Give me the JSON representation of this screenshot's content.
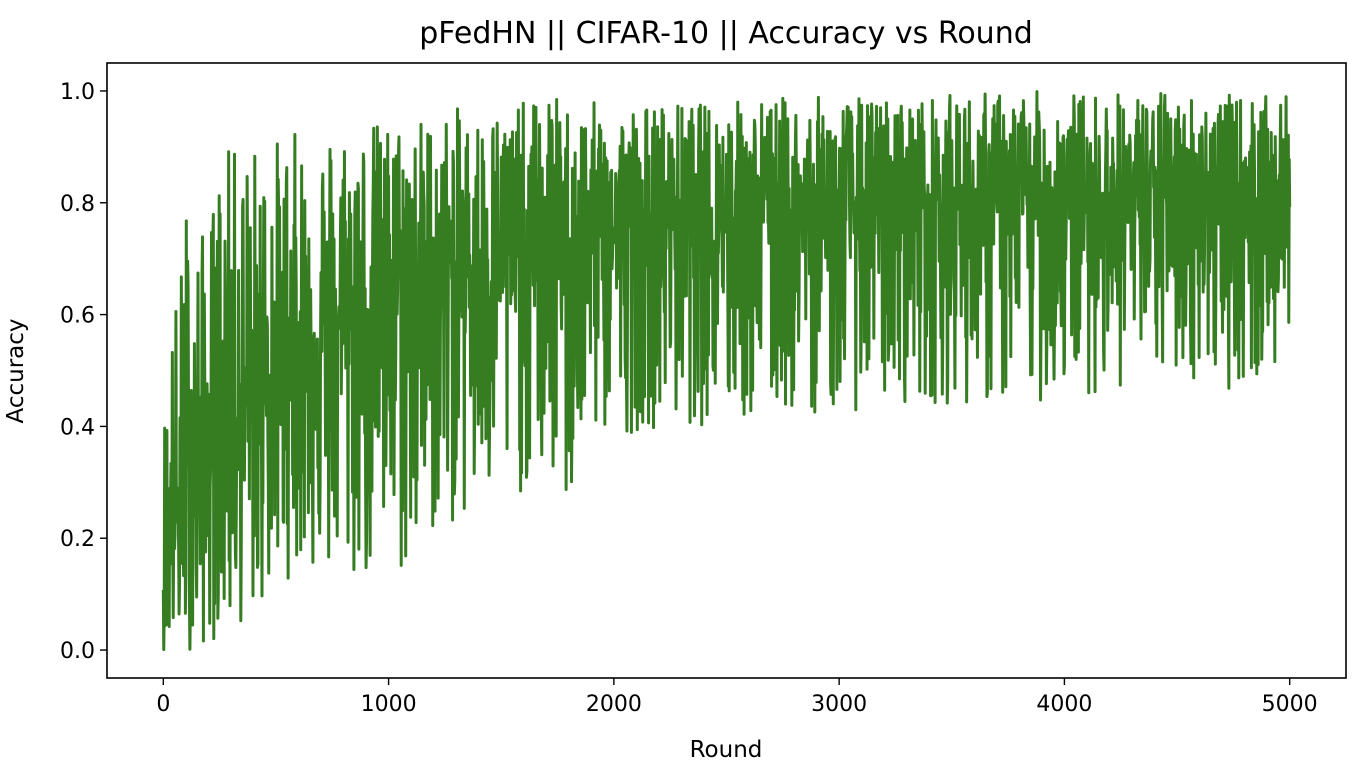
{
  "chart_data": {
    "type": "line",
    "title": "pFedHN || CIFAR-10 || Accuracy vs Round",
    "xlabel": "Round",
    "ylabel": "Accuracy",
    "xlim": [
      -250,
      5250
    ],
    "ylim": [
      -0.05,
      1.05
    ],
    "xticks": [
      0,
      1000,
      2000,
      3000,
      4000,
      5000
    ],
    "yticks": [
      0.0,
      0.2,
      0.4,
      0.6,
      0.8,
      1.0
    ],
    "xtick_labels": [
      "0",
      "1000",
      "2000",
      "3000",
      "4000",
      "5000"
    ],
    "ytick_labels": [
      "0.0",
      "0.2",
      "0.4",
      "0.6",
      "0.8",
      "1.0"
    ],
    "grid": false,
    "line_color": "#367d22",
    "series": [
      {
        "x": [
          0,
          10,
          20,
          30,
          40,
          60,
          80,
          100,
          130,
          160,
          200,
          250,
          300,
          400,
          500,
          600,
          700,
          800,
          900,
          1000,
          1100,
          1200,
          1300,
          1400,
          1500,
          1600,
          1700,
          1800,
          1900,
          2000,
          2200,
          2400,
          2600,
          2800,
          3000,
          3200,
          3400,
          3600,
          3800,
          4000,
          4200,
          4400,
          4600,
          4800,
          5000
        ],
        "mean": [
          0.12,
          0.15,
          0.17,
          0.19,
          0.21,
          0.23,
          0.25,
          0.27,
          0.3,
          0.32,
          0.35,
          0.38,
          0.41,
          0.46,
          0.5,
          0.53,
          0.56,
          0.59,
          0.61,
          0.63,
          0.65,
          0.66,
          0.68,
          0.69,
          0.7,
          0.71,
          0.72,
          0.73,
          0.74,
          0.75,
          0.76,
          0.77,
          0.78,
          0.78,
          0.79,
          0.79,
          0.8,
          0.8,
          0.8,
          0.81,
          0.81,
          0.81,
          0.81,
          0.81,
          0.81
        ],
        "high": [
          0.43,
          0.47,
          0.52,
          0.6,
          0.61,
          0.65,
          0.7,
          0.83,
          0.75,
          0.75,
          0.75,
          0.89,
          0.9,
          0.91,
          0.92,
          0.93,
          0.94,
          0.95,
          0.95,
          0.95,
          0.96,
          0.96,
          0.97,
          0.97,
          0.98,
          0.98,
          1.0,
          0.98,
          0.98,
          0.98,
          0.98,
          0.98,
          0.99,
          0.99,
          0.99,
          0.99,
          0.99,
          1.0,
          1.0,
          1.0,
          1.0,
          1.0,
          1.0,
          0.99,
          0.99
        ],
        "low": [
          0.0,
          0.0,
          0.0,
          0.0,
          0.0,
          0.0,
          0.0,
          0.0,
          0.0,
          0.0,
          0.0,
          0.03,
          0.03,
          0.05,
          0.1,
          0.15,
          0.12,
          0.1,
          0.11,
          0.12,
          0.11,
          0.2,
          0.22,
          0.22,
          0.25,
          0.28,
          0.3,
          0.23,
          0.37,
          0.38,
          0.4,
          0.4,
          0.4,
          0.42,
          0.42,
          0.44,
          0.44,
          0.44,
          0.42,
          0.46,
          0.46,
          0.48,
          0.48,
          0.46,
          0.5
        ]
      }
    ]
  }
}
